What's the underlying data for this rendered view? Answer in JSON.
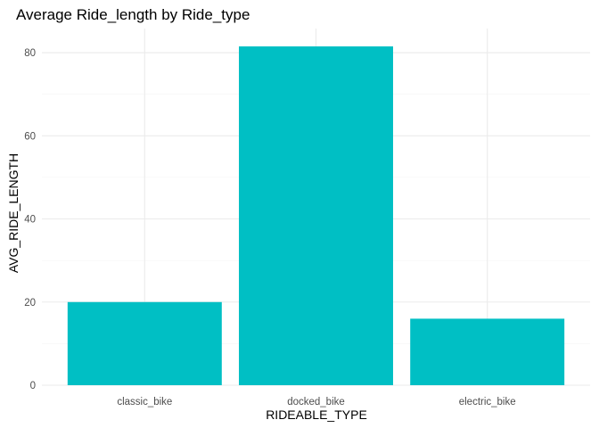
{
  "chart_data": {
    "type": "bar",
    "title": "Average Ride_length by Ride_type",
    "xlabel": "RIDEABLE_TYPE",
    "ylabel": "AVG_RIDE_LENGTH",
    "categories": [
      "classic_bike",
      "docked_bike",
      "electric_bike"
    ],
    "values": [
      20.0,
      81.5,
      16.0
    ],
    "ylim": [
      0,
      85.8
    ],
    "yticks": [
      0,
      20,
      40,
      60,
      80
    ],
    "yticks_minor": [
      10,
      30,
      50,
      70
    ],
    "grid": true,
    "bar_color": "#00BFC4",
    "theme": "minimal"
  }
}
